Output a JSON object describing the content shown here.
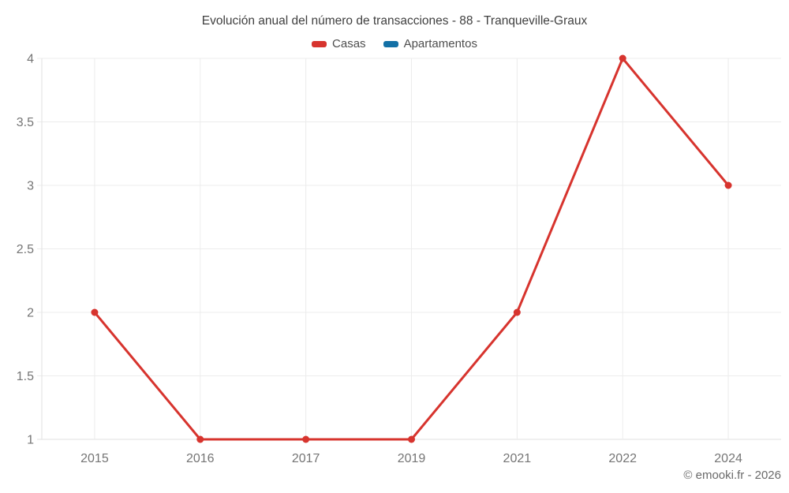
{
  "chart_data": {
    "type": "line",
    "title": "Evolución anual del número de transacciones - 88 - Tranqueville-Graux",
    "categories": [
      "2015",
      "2016",
      "2017",
      "2019",
      "2021",
      "2022",
      "2024"
    ],
    "series": [
      {
        "name": "Casas",
        "color": "#d7342e",
        "values": [
          2,
          1,
          1,
          1,
          2,
          4,
          3
        ]
      },
      {
        "name": "Apartamentos",
        "color": "#1370a6",
        "values": []
      }
    ],
    "y_ticks": [
      1,
      1.5,
      2,
      2.5,
      3,
      3.5,
      4
    ],
    "ylim": [
      1,
      4
    ],
    "xlabel": "",
    "ylabel": "",
    "grid": true,
    "legend_position": "top",
    "marker_radius": 4.5,
    "line_width": 3
  },
  "styles": {
    "grid_color": "#ececec",
    "axis_color": "#e2e2e2",
    "tick_label_color": "#757575",
    "tick_font_size": 16
  },
  "footer": {
    "copyright": "© emooki.fr - 2026"
  }
}
